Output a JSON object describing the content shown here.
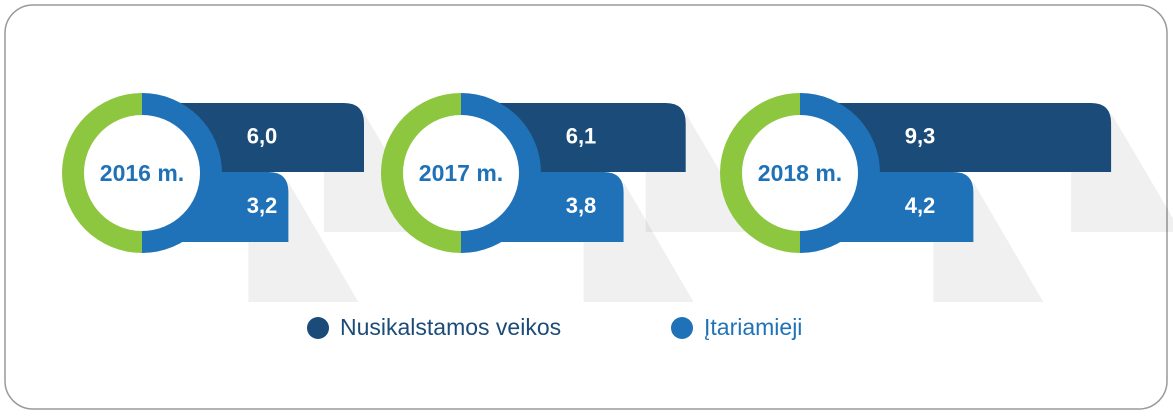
{
  "chart_data": {
    "type": "bar",
    "categories": [
      "2016 m.",
      "2017 m.",
      "2018 m."
    ],
    "series": [
      {
        "name": "Nusikalstamos veikos",
        "color": "#1b4b79",
        "values": [
          6.0,
          6.1,
          9.3
        ],
        "value_labels": [
          "6,0",
          "6,1",
          "9,3"
        ]
      },
      {
        "name": "Įtariamieji",
        "color": "#1f72b8",
        "values": [
          3.2,
          3.8,
          4.2
        ],
        "value_labels": [
          "3,2",
          "3,8",
          "4,2"
        ]
      }
    ],
    "ring_color": "#8dc63f"
  }
}
